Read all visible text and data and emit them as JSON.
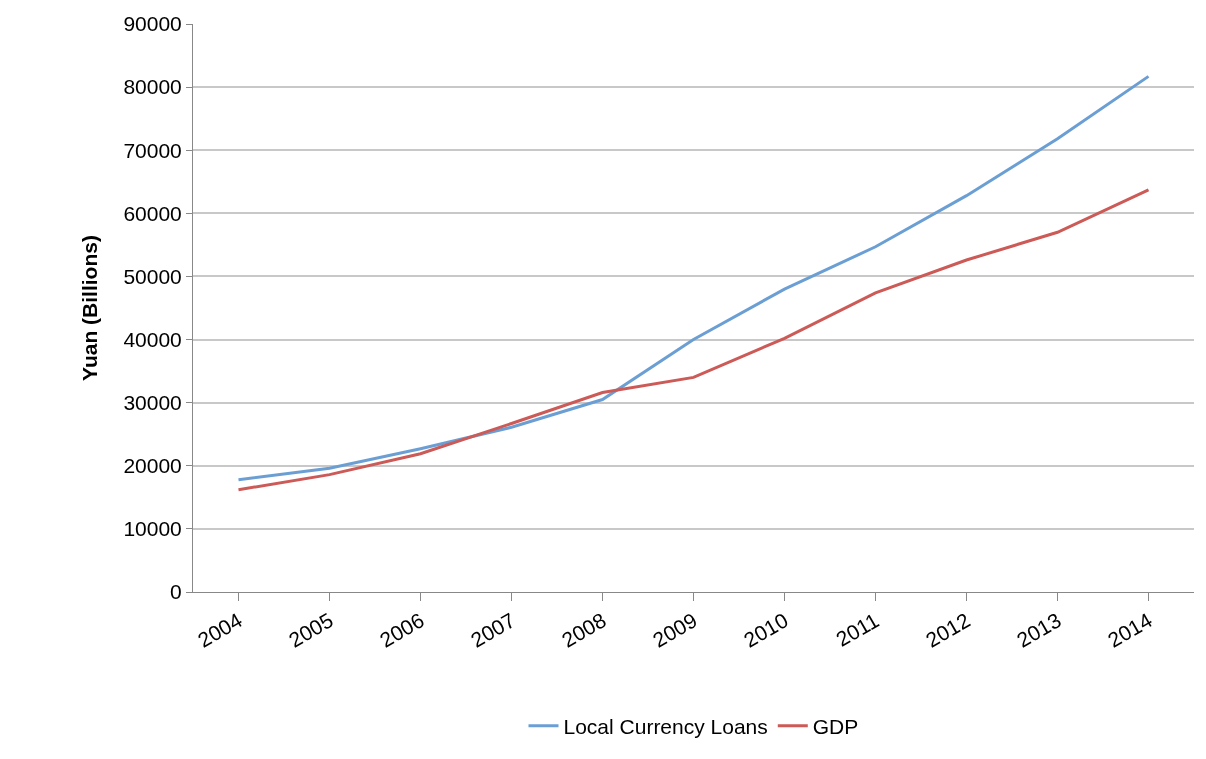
{
  "chart_data": {
    "type": "line",
    "ylabel": "Yuan (Billions)",
    "categories": [
      "2004",
      "2005",
      "2006",
      "2007",
      "2008",
      "2009",
      "2010",
      "2011",
      "2012",
      "2013",
      "2014"
    ],
    "series": [
      {
        "name": "Local Currency Loans",
        "color": "#6b9fd4",
        "values": [
          17800,
          19600,
          22700,
          26100,
          30500,
          40000,
          48000,
          54700,
          62800,
          71800,
          81700
        ]
      },
      {
        "name": "GDP",
        "color": "#cc5a57",
        "values": [
          16200,
          18600,
          21900,
          26700,
          31600,
          34000,
          40200,
          47400,
          52600,
          57000,
          63700
        ]
      }
    ],
    "ylim": [
      0,
      90000
    ],
    "yticks": [
      0,
      10000,
      20000,
      30000,
      40000,
      50000,
      60000,
      70000,
      80000,
      90000
    ],
    "grid": "y",
    "legend": "bottom",
    "marker": "none",
    "line_style": "solid"
  }
}
